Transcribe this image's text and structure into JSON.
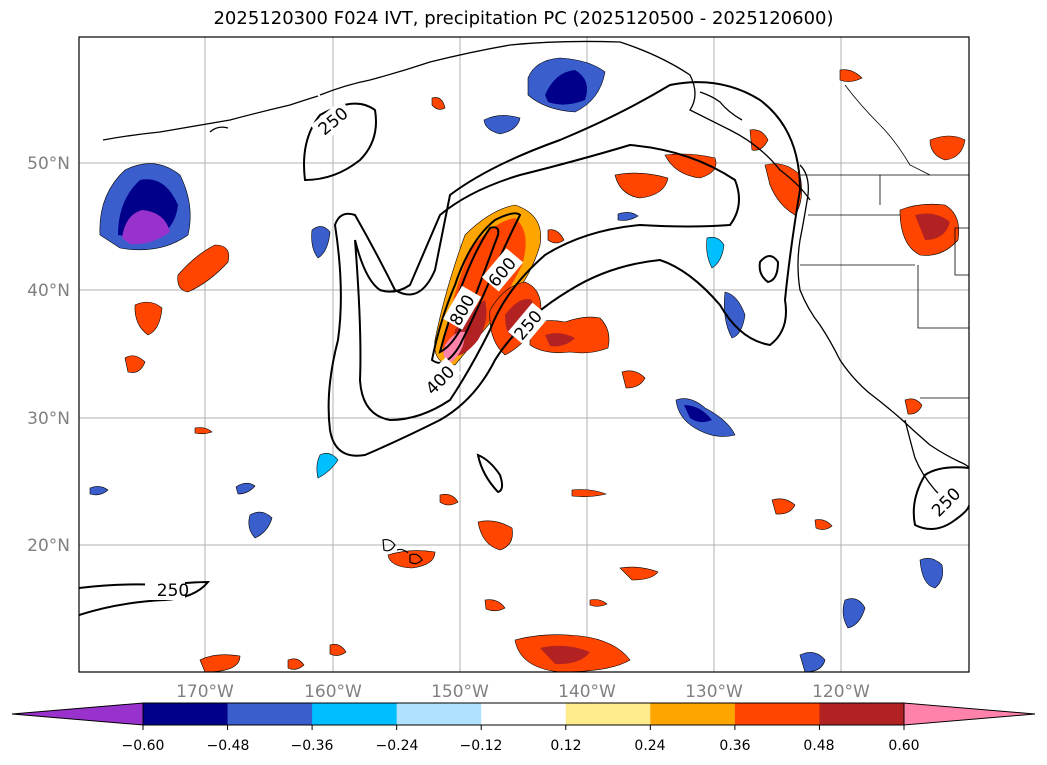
{
  "title": "2025120300 F024 IVT, precipitation PC (2025120500 - 2025120600)",
  "lat_labels": [
    "50°N",
    "40°N",
    "30°N",
    "20°N"
  ],
  "lon_labels": [
    "170°W",
    "160°W",
    "150°W",
    "140°W",
    "130°W",
    "120°W"
  ],
  "contour_labels": [
    "250",
    "250",
    "600",
    "800",
    "400",
    "250",
    "250"
  ],
  "colorbar": {
    "tick_labels": [
      "−0.60",
      "−0.48",
      "−0.36",
      "−0.24",
      "−0.12",
      "0.12",
      "0.24",
      "0.36",
      "0.48",
      "0.60"
    ],
    "colors": [
      "#9932cc",
      "#00008b",
      "#3a5fcd",
      "#00bfff",
      "#b0e2ff",
      "#ffffff",
      "#ffeb8c",
      "#ffa500",
      "#ff4500",
      "#b22222",
      "#ff82ab"
    ]
  }
}
